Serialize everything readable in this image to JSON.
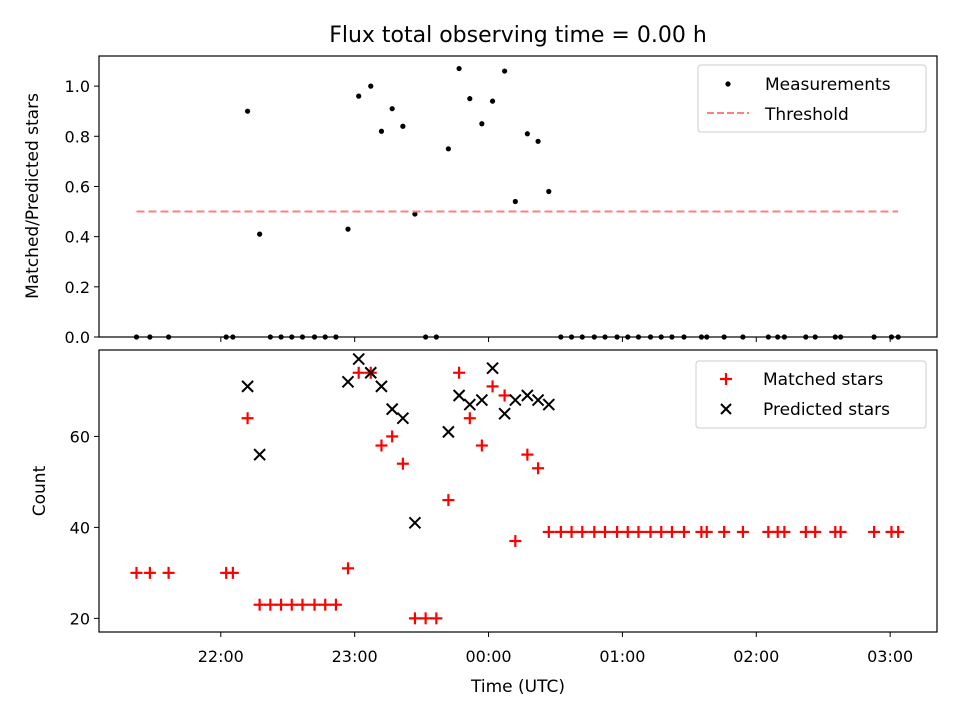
{
  "title": "Flux total observing time = 0.00 h",
  "xlabel": "Time (UTC)",
  "x_tick_labels": [
    "22:00",
    "23:00",
    "00:00",
    "01:00",
    "02:00",
    "03:00"
  ],
  "chart_data": [
    {
      "type": "scatter",
      "ylabel": "Matched/Predicted stars",
      "xlim": [
        -2.91,
        3.35
      ],
      "ylim": [
        0,
        1.12
      ],
      "x_units": "hours relative to 00:00 UTC",
      "yticks": [
        "0.0",
        "0.2",
        "0.4",
        "0.6",
        "0.8",
        "1.0"
      ],
      "legend_position": "top-right",
      "legend": [
        "Measurements",
        "Threshold"
      ],
      "series": [
        {
          "name": "Measurements",
          "marker": "dot",
          "color": "#000000",
          "points": [
            [
              -2.63,
              0.0
            ],
            [
              -2.53,
              0.0
            ],
            [
              -2.39,
              0.0
            ],
            [
              -1.96,
              0.0
            ],
            [
              -1.91,
              0.0
            ],
            [
              -1.8,
              0.9
            ],
            [
              -1.71,
              0.41
            ],
            [
              -1.63,
              0.0
            ],
            [
              -1.55,
              0.0
            ],
            [
              -1.47,
              0.0
            ],
            [
              -1.39,
              0.0
            ],
            [
              -1.3,
              0.0
            ],
            [
              -1.22,
              0.0
            ],
            [
              -1.14,
              0.0
            ],
            [
              -1.05,
              0.43
            ],
            [
              -0.97,
              0.96
            ],
            [
              -0.88,
              1.0
            ],
            [
              -0.8,
              0.82
            ],
            [
              -0.72,
              0.91
            ],
            [
              -0.64,
              0.84
            ],
            [
              -0.55,
              0.49
            ],
            [
              -0.47,
              0.0
            ],
            [
              -0.39,
              0.0
            ],
            [
              -0.3,
              0.75
            ],
            [
              -0.22,
              1.07
            ],
            [
              -0.14,
              0.95
            ],
            [
              -0.05,
              0.85
            ],
            [
              0.03,
              0.94
            ],
            [
              0.12,
              1.06
            ],
            [
              0.2,
              0.54
            ],
            [
              0.29,
              0.81
            ],
            [
              0.37,
              0.78
            ],
            [
              0.45,
              0.58
            ],
            [
              0.54,
              0.0
            ],
            [
              0.62,
              0.0
            ],
            [
              0.7,
              0.0
            ],
            [
              0.79,
              0.0
            ],
            [
              0.87,
              0.0
            ],
            [
              0.96,
              0.0
            ],
            [
              1.04,
              0.0
            ],
            [
              1.12,
              0.0
            ],
            [
              1.21,
              0.0
            ],
            [
              1.29,
              0.0
            ],
            [
              1.37,
              0.0
            ],
            [
              1.46,
              0.0
            ],
            [
              1.59,
              0.0
            ],
            [
              1.63,
              0.0
            ],
            [
              1.76,
              0.0
            ],
            [
              1.9,
              0.0
            ],
            [
              2.09,
              0.0
            ],
            [
              2.16,
              0.0
            ],
            [
              2.21,
              0.0
            ],
            [
              2.37,
              0.0
            ],
            [
              2.44,
              0.0
            ],
            [
              2.59,
              0.0
            ],
            [
              2.63,
              0.0
            ],
            [
              2.88,
              0.0
            ],
            [
              3.01,
              0.0
            ],
            [
              3.06,
              0.0
            ]
          ]
        },
        {
          "name": "Threshold",
          "type": "line",
          "style": "dashed",
          "color": "#ff7f7f",
          "x": [
            -2.63,
            3.06
          ],
          "y": [
            0.5,
            0.5
          ]
        }
      ]
    },
    {
      "type": "scatter",
      "ylabel": "Count",
      "xlim": [
        -2.91,
        3.35
      ],
      "ylim": [
        17,
        79
      ],
      "x_units": "hours relative to 00:00 UTC",
      "yticks": [
        "20",
        "40",
        "60"
      ],
      "legend_position": "top-right",
      "legend": [
        "Matched stars",
        "Predicted stars"
      ],
      "series": [
        {
          "name": "Matched stars",
          "marker": "plus",
          "color": "#ff0000",
          "points": [
            [
              -2.63,
              30
            ],
            [
              -2.53,
              30
            ],
            [
              -2.39,
              30
            ],
            [
              -1.96,
              30
            ],
            [
              -1.91,
              30
            ],
            [
              -1.8,
              64
            ],
            [
              -1.71,
              23
            ],
            [
              -1.63,
              23
            ],
            [
              -1.55,
              23
            ],
            [
              -1.47,
              23
            ],
            [
              -1.39,
              23
            ],
            [
              -1.3,
              23
            ],
            [
              -1.22,
              23
            ],
            [
              -1.14,
              23
            ],
            [
              -1.05,
              31
            ],
            [
              -0.97,
              74
            ],
            [
              -0.88,
              74
            ],
            [
              -0.8,
              58
            ],
            [
              -0.72,
              60
            ],
            [
              -0.64,
              54
            ],
            [
              -0.55,
              20
            ],
            [
              -0.47,
              20
            ],
            [
              -0.39,
              20
            ],
            [
              -0.3,
              46
            ],
            [
              -0.22,
              74
            ],
            [
              -0.14,
              64
            ],
            [
              -0.05,
              58
            ],
            [
              0.03,
              71
            ],
            [
              0.12,
              69
            ],
            [
              0.2,
              37
            ],
            [
              0.29,
              56
            ],
            [
              0.37,
              53
            ],
            [
              0.45,
              39
            ],
            [
              0.54,
              39
            ],
            [
              0.62,
              39
            ],
            [
              0.7,
              39
            ],
            [
              0.79,
              39
            ],
            [
              0.87,
              39
            ],
            [
              0.96,
              39
            ],
            [
              1.04,
              39
            ],
            [
              1.12,
              39
            ],
            [
              1.21,
              39
            ],
            [
              1.29,
              39
            ],
            [
              1.37,
              39
            ],
            [
              1.46,
              39
            ],
            [
              1.59,
              39
            ],
            [
              1.63,
              39
            ],
            [
              1.76,
              39
            ],
            [
              1.9,
              39
            ],
            [
              2.09,
              39
            ],
            [
              2.16,
              39
            ],
            [
              2.21,
              39
            ],
            [
              2.37,
              39
            ],
            [
              2.44,
              39
            ],
            [
              2.59,
              39
            ],
            [
              2.63,
              39
            ],
            [
              2.88,
              39
            ],
            [
              3.01,
              39
            ],
            [
              3.06,
              39
            ]
          ]
        },
        {
          "name": "Predicted stars",
          "marker": "x",
          "color": "#000000",
          "points": [
            [
              -1.8,
              71
            ],
            [
              -1.71,
              56
            ],
            [
              -1.05,
              72
            ],
            [
              -0.97,
              77
            ],
            [
              -0.88,
              74
            ],
            [
              -0.8,
              71
            ],
            [
              -0.72,
              66
            ],
            [
              -0.64,
              64
            ],
            [
              -0.55,
              41
            ],
            [
              -0.3,
              61
            ],
            [
              -0.22,
              69
            ],
            [
              -0.14,
              67
            ],
            [
              -0.05,
              68
            ],
            [
              0.03,
              75
            ],
            [
              0.12,
              65
            ],
            [
              0.2,
              68
            ],
            [
              0.29,
              69
            ],
            [
              0.37,
              68
            ],
            [
              0.45,
              67
            ]
          ]
        }
      ]
    }
  ]
}
